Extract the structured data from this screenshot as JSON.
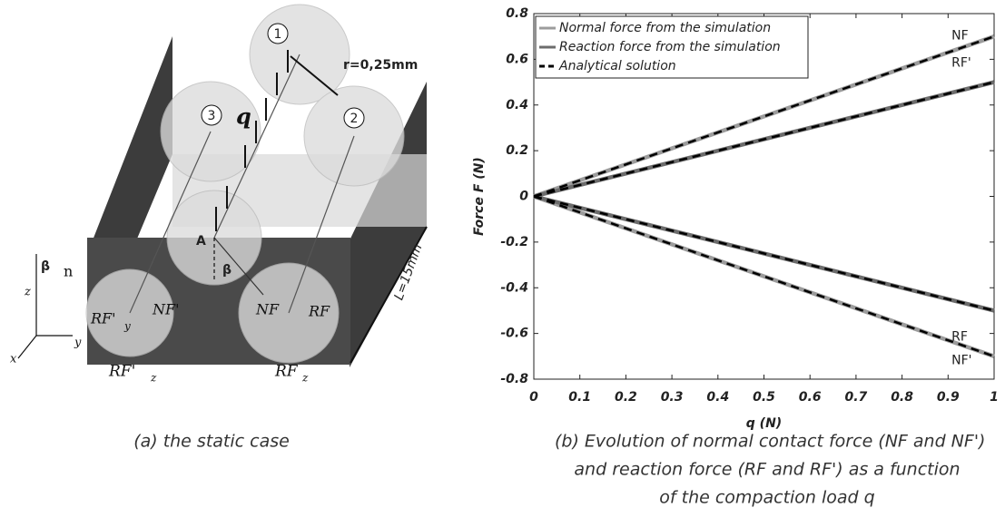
{
  "panel_a": {
    "caption": "(a)   the static case",
    "labels": {
      "cyl1": "1",
      "cyl2": "2",
      "cyl3": "3",
      "radius": "r=0,25mm",
      "load": "q",
      "point": "A",
      "angle": "β",
      "normal": "n",
      "axis_angle": "β",
      "axis_z": "z",
      "axis_y": "y",
      "axis_x": "x",
      "rf_prime_y": "RF'",
      "rf_prime_y_sub": "y",
      "nf_prime": "NF'",
      "nf": "NF",
      "rf_y": "RF",
      "rf_prime_z": "RF'",
      "rf_prime_z_sub": "z",
      "rf_z": "RF",
      "rf_z_sub": "z",
      "length": "L=15mm"
    }
  },
  "chart_data": {
    "type": "line",
    "x_label": "q (N)",
    "y_label": "Force F (N)",
    "x": [
      0,
      1
    ],
    "series": [
      {
        "name": "Normal force from the simulation",
        "color": "#9c9c9c",
        "curves": [
          {
            "label": "NF",
            "values": [
              0,
              0.7
            ]
          },
          {
            "label": "NF'",
            "values": [
              0,
              -0.7
            ]
          }
        ]
      },
      {
        "name": "Reaction force from the simulation",
        "color": "#6c6c6c",
        "curves": [
          {
            "label": "RF'",
            "values": [
              0,
              0.5
            ]
          },
          {
            "label": "RF",
            "values": [
              0,
              -0.5
            ]
          }
        ]
      },
      {
        "name": "Analytical solution",
        "color": "#000000",
        "dashed": true,
        "curves": [
          {
            "values": [
              0,
              0.7
            ]
          },
          {
            "values": [
              0,
              -0.7
            ]
          },
          {
            "values": [
              0,
              0.5
            ]
          },
          {
            "values": [
              0,
              -0.5
            ]
          }
        ]
      }
    ],
    "xlim": [
      0,
      1
    ],
    "ylim": [
      -0.8,
      0.8
    ],
    "xticks": [
      0,
      0.1,
      0.2,
      0.3,
      0.4,
      0.5,
      0.6,
      0.7,
      0.8,
      0.9,
      1
    ],
    "yticks": [
      -0.8,
      -0.6,
      -0.4,
      -0.2,
      0,
      0.2,
      0.4,
      0.6,
      0.8
    ],
    "legend": "upper left",
    "caption": [
      "(b)   Evolution of normal contact force (NF and NF')",
      "and reaction force (RF and RF') as a function",
      "of the compaction load q"
    ]
  }
}
